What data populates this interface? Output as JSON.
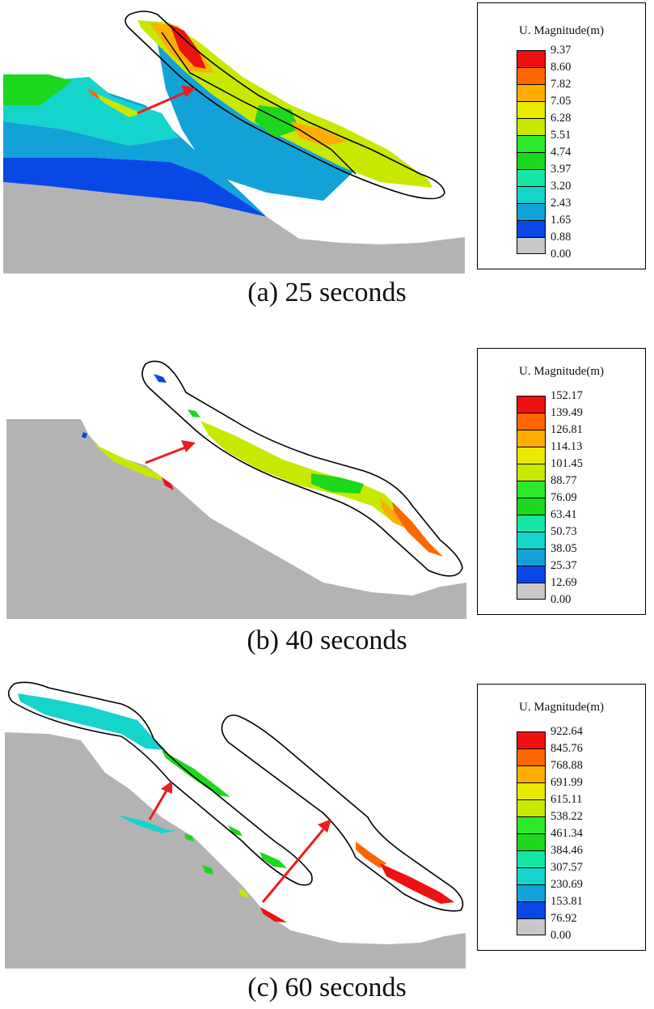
{
  "colors": {
    "ground": "#b3b3b3",
    "arrow": "#ee1c1c",
    "outline": "#000000",
    "scale": [
      "#c8c8c8",
      "#0a48e6",
      "#13a2d8",
      "#15d4cc",
      "#16e6a4",
      "#1cd71c",
      "#2bea2b",
      "#c8e800",
      "#e8e800",
      "#ffae00",
      "#ff6600",
      "#ee1111"
    ]
  },
  "panels": [
    {
      "caption": "(a) 25 seconds",
      "legend": {
        "title": "U. Magnitude(m)",
        "ticks": [
          "9.37",
          "8.60",
          "7.82",
          "7.05",
          "6.28",
          "5.51",
          "4.74",
          "3.97",
          "3.20",
          "2.43",
          "1.65",
          "0.88",
          "0.00"
        ]
      }
    },
    {
      "caption": "(b) 40 seconds",
      "legend": {
        "title": "U. Magnitude(m)",
        "ticks": [
          "152.17",
          "139.49",
          "126.81",
          "114.13",
          "101.45",
          "88.77",
          "76.09",
          "63.41",
          "50.73",
          "38.05",
          "25.37",
          "12.69",
          "0.00"
        ]
      }
    },
    {
      "caption": "(c) 60 seconds",
      "legend": {
        "title": "U. Magnitude(m)",
        "ticks": [
          "922.64",
          "845.76",
          "768.88",
          "691.99",
          "615.11",
          "538.22",
          "461.34",
          "384.46",
          "307.57",
          "230.69",
          "153.81",
          "76.92",
          "0.00"
        ]
      }
    }
  ]
}
